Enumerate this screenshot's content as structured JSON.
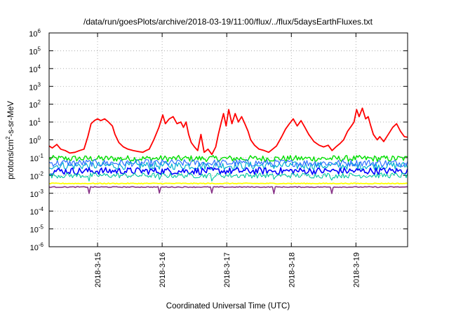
{
  "chart_data": {
    "type": "line",
    "title": "/data/run/goesPlots/archive/2018-03-19/11:00/flux/../flux/5daysEarthFluxes.txt",
    "xlabel": "Coordinated Universal Time (UTC)",
    "ylabel": {
      "base": "protons/cm",
      "sup": "2",
      "rest": "-s-sr-MeV"
    },
    "yscale": "log",
    "ylim_exp": [
      -6,
      6
    ],
    "yticks": [
      {
        "base": "10",
        "exp": "6"
      },
      {
        "base": "10",
        "exp": "5"
      },
      {
        "base": "10",
        "exp": "4"
      },
      {
        "base": "10",
        "exp": "3"
      },
      {
        "base": "10",
        "exp": "2"
      },
      {
        "base": "10",
        "exp": "1"
      },
      {
        "base": "10",
        "exp": "0"
      },
      {
        "base": "10",
        "exp": "-1"
      },
      {
        "base": "10",
        "exp": "-2"
      },
      {
        "base": "10",
        "exp": "-3"
      },
      {
        "base": "10",
        "exp": "-4"
      },
      {
        "base": "10",
        "exp": "-5"
      },
      {
        "base": "10",
        "exp": "-6"
      }
    ],
    "xlim_days": [
      14.0,
      19.55
    ],
    "xticks": [
      {
        "day": 14.75,
        "label": "2018-3-15"
      },
      {
        "day": 15.75,
        "label": "2018-3-16"
      },
      {
        "day": 16.75,
        "label": "2018-3-17"
      },
      {
        "day": 17.75,
        "label": "2018-3-18"
      },
      {
        "day": 18.75,
        "label": "2018-3-19"
      }
    ],
    "grid": true,
    "series": [
      {
        "color": "#ff0000",
        "width": 1.8,
        "points": [
          [
            14.0,
            0.45
          ],
          [
            14.05,
            0.35
          ],
          [
            14.12,
            0.55
          ],
          [
            14.18,
            0.3
          ],
          [
            14.25,
            0.25
          ],
          [
            14.32,
            0.18
          ],
          [
            14.4,
            0.2
          ],
          [
            14.47,
            0.25
          ],
          [
            14.54,
            0.3
          ],
          [
            14.6,
            1.5
          ],
          [
            14.65,
            8
          ],
          [
            14.7,
            12
          ],
          [
            14.75,
            15
          ],
          [
            14.8,
            12
          ],
          [
            14.86,
            15
          ],
          [
            14.92,
            10
          ],
          [
            14.98,
            6
          ],
          [
            15.02,
            2
          ],
          [
            15.08,
            0.7
          ],
          [
            15.15,
            0.4
          ],
          [
            15.22,
            0.3
          ],
          [
            15.3,
            0.25
          ],
          [
            15.38,
            0.22
          ],
          [
            15.45,
            0.2
          ],
          [
            15.5,
            0.25
          ],
          [
            15.55,
            0.3
          ],
          [
            15.62,
            1
          ],
          [
            15.7,
            5
          ],
          [
            15.76,
            25
          ],
          [
            15.8,
            8
          ],
          [
            15.86,
            15
          ],
          [
            15.92,
            20
          ],
          [
            15.98,
            8
          ],
          [
            16.04,
            10
          ],
          [
            16.08,
            5
          ],
          [
            16.12,
            10
          ],
          [
            16.16,
            2
          ],
          [
            16.2,
            0.7
          ],
          [
            16.25,
            0.4
          ],
          [
            16.3,
            0.25
          ],
          [
            16.35,
            2
          ],
          [
            16.4,
            0.2
          ],
          [
            16.46,
            0.3
          ],
          [
            16.52,
            0.15
          ],
          [
            16.58,
            0.4
          ],
          [
            16.62,
            2
          ],
          [
            16.66,
            8
          ],
          [
            16.7,
            30
          ],
          [
            16.74,
            6
          ],
          [
            16.78,
            50
          ],
          [
            16.83,
            8
          ],
          [
            16.88,
            30
          ],
          [
            16.93,
            10
          ],
          [
            16.98,
            20
          ],
          [
            17.03,
            8
          ],
          [
            17.08,
            3
          ],
          [
            17.12,
            1
          ],
          [
            17.18,
            0.5
          ],
          [
            17.25,
            0.3
          ],
          [
            17.33,
            0.25
          ],
          [
            17.4,
            0.2
          ],
          [
            17.46,
            0.3
          ],
          [
            17.52,
            0.45
          ],
          [
            17.6,
            1.5
          ],
          [
            17.66,
            4
          ],
          [
            17.72,
            8
          ],
          [
            17.78,
            15
          ],
          [
            17.84,
            6
          ],
          [
            17.9,
            12
          ],
          [
            17.96,
            5
          ],
          [
            18.02,
            2
          ],
          [
            18.1,
            0.8
          ],
          [
            18.18,
            0.5
          ],
          [
            18.25,
            0.4
          ],
          [
            18.32,
            0.5
          ],
          [
            18.38,
            0.25
          ],
          [
            18.44,
            0.4
          ],
          [
            18.5,
            0.6
          ],
          [
            18.56,
            1
          ],
          [
            18.62,
            3
          ],
          [
            18.68,
            6
          ],
          [
            18.72,
            10
          ],
          [
            18.76,
            50
          ],
          [
            18.8,
            20
          ],
          [
            18.85,
            60
          ],
          [
            18.9,
            15
          ],
          [
            18.94,
            20
          ],
          [
            18.98,
            6
          ],
          [
            19.02,
            2
          ],
          [
            19.08,
            1
          ],
          [
            19.12,
            1.5
          ],
          [
            19.18,
            0.8
          ],
          [
            19.25,
            2
          ],
          [
            19.32,
            5
          ],
          [
            19.38,
            8
          ],
          [
            19.44,
            3
          ],
          [
            19.5,
            1.5
          ],
          [
            19.55,
            1.4
          ]
        ]
      }
    ]
  }
}
